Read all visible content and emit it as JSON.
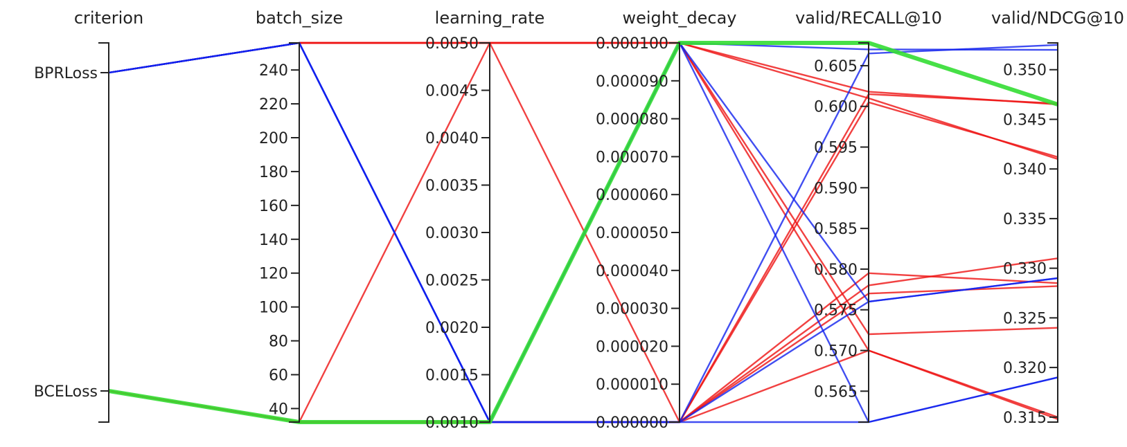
{
  "chart_data": {
    "type": "parallel_coordinates",
    "title": "",
    "axes": [
      {
        "name": "criterion",
        "kind": "categorical",
        "categories": [
          "BPRLoss",
          "BCELoss"
        ],
        "ticks": [
          "BPRLoss",
          "BCELoss"
        ]
      },
      {
        "name": "batch_size",
        "kind": "numeric",
        "range": [
          32,
          256
        ],
        "ticks": [
          "40",
          "60",
          "80",
          "100",
          "120",
          "140",
          "160",
          "180",
          "200",
          "220",
          "240"
        ]
      },
      {
        "name": "learning_rate",
        "kind": "numeric",
        "range": [
          0.001,
          0.005
        ],
        "ticks": [
          "0.0010",
          "0.0015",
          "0.0020",
          "0.0025",
          "0.0030",
          "0.0035",
          "0.0040",
          "0.0045",
          "0.0050"
        ]
      },
      {
        "name": "weight_decay",
        "kind": "numeric",
        "range": [
          0,
          0.0001
        ],
        "ticks": [
          "0.000000",
          "0.000010",
          "0.000020",
          "0.000030",
          "0.000040",
          "0.000050",
          "0.000060",
          "0.000070",
          "0.000080",
          "0.000090",
          "0.000100"
        ]
      },
      {
        "name": "valid/RECALL@10",
        "kind": "numeric",
        "range": [
          0.5612,
          0.6078
        ],
        "ticks": [
          "0.565",
          "0.570",
          "0.575",
          "0.580",
          "0.585",
          "0.590",
          "0.595",
          "0.600",
          "0.605"
        ]
      },
      {
        "name": "valid/NDCG@10",
        "kind": "numeric",
        "range": [
          0.3145,
          0.3527
        ],
        "ticks": [
          "0.315",
          "0.320",
          "0.325",
          "0.330",
          "0.335",
          "0.340",
          "0.345",
          "0.350"
        ]
      }
    ],
    "runs": [
      {
        "color": "#ee1111",
        "values": [
          "BPRLoss",
          256,
          0.005,
          0.0001,
          0.601,
          0.341
        ]
      },
      {
        "color": "#ee1111",
        "values": [
          "BPRLoss",
          256,
          0.005,
          0.0001,
          0.6018,
          0.3465
        ]
      },
      {
        "color": "#ee1111",
        "values": [
          "BPRLoss",
          256,
          0.005,
          0.0001,
          0.572,
          0.324
        ]
      },
      {
        "color": "#ee1111",
        "values": [
          "BPRLoss",
          256,
          0.005,
          0.0001,
          0.57,
          0.315
        ]
      },
      {
        "color": "#ee1111",
        "values": [
          "BCELoss",
          32,
          0.001,
          0.0,
          0.6005,
          0.3412
        ]
      },
      {
        "color": "#ee1111",
        "values": [
          "BCELoss",
          32,
          0.001,
          0.0,
          0.6015,
          0.3466
        ]
      },
      {
        "color": "#ee1111",
        "values": [
          "BCELoss",
          32,
          0.001,
          0.0,
          0.5795,
          0.3285
        ]
      },
      {
        "color": "#ee1111",
        "values": [
          "BCELoss",
          32,
          0.001,
          0.0,
          0.578,
          0.331
        ]
      },
      {
        "color": "#ee1111",
        "values": [
          "BCELoss",
          32,
          0.001,
          0.0,
          0.57,
          0.3148
        ]
      },
      {
        "color": "#ee1111",
        "values": [
          "BCELoss",
          32,
          0.005,
          0.0,
          0.577,
          0.3282
        ]
      },
      {
        "color": "#1122ee",
        "values": [
          "BPRLoss",
          256,
          0.001,
          0.0001,
          0.607,
          0.352
        ]
      },
      {
        "color": "#1122ee",
        "values": [
          "BPRLoss",
          256,
          0.001,
          0.0001,
          0.576,
          0.329
        ]
      },
      {
        "color": "#1122ee",
        "values": [
          "BPRLoss",
          256,
          0.001,
          0.0,
          0.6065,
          0.3525
        ]
      },
      {
        "color": "#1122ee",
        "values": [
          "BPRLoss",
          256,
          0.001,
          0.0,
          0.576,
          0.329
        ]
      },
      {
        "color": "#1122ee",
        "values": [
          "BPRLoss",
          256,
          0.001,
          0.0,
          0.5612,
          0.319
        ]
      },
      {
        "color": "#1122ee",
        "values": [
          "BPRLoss",
          256,
          0.001,
          0.0001,
          0.5612,
          0.319
        ]
      },
      {
        "color": "#33dd33",
        "values": [
          "BCELoss",
          32,
          0.001,
          0.0001,
          0.6078,
          0.3465
        ]
      }
    ]
  }
}
